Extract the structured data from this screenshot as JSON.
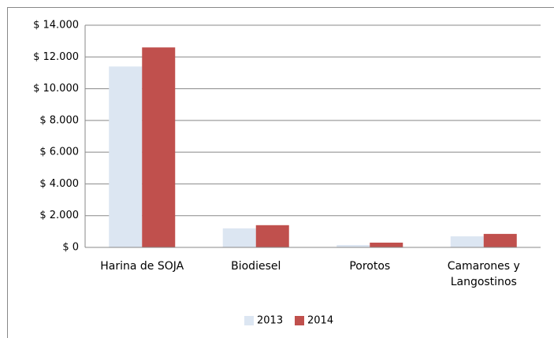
{
  "chart_data": {
    "type": "bar",
    "categories": [
      "Harina de SOJA",
      "Biodiesel",
      "Porotos",
      "Camarones y Langostinos"
    ],
    "series": [
      {
        "name": "2013",
        "color": "#dce6f2",
        "values": [
          11400,
          1200,
          150,
          700
        ]
      },
      {
        "name": "2014",
        "color": "#c0504d",
        "values": [
          12600,
          1400,
          300,
          850
        ]
      }
    ],
    "ylim": [
      0,
      14000
    ],
    "yticks": [
      {
        "value": 0,
        "label": "$ 0"
      },
      {
        "value": 2000,
        "label": "$ 2.000"
      },
      {
        "value": 4000,
        "label": "$ 4.000"
      },
      {
        "value": 6000,
        "label": "$ 6.000"
      },
      {
        "value": 8000,
        "label": "$ 8.000"
      },
      {
        "value": 10000,
        "label": "$ 10.000"
      },
      {
        "value": 12000,
        "label": "$ 12.000"
      },
      {
        "value": 14000,
        "label": "$ 14.000"
      }
    ],
    "grid": true,
    "legend": "bottom"
  }
}
